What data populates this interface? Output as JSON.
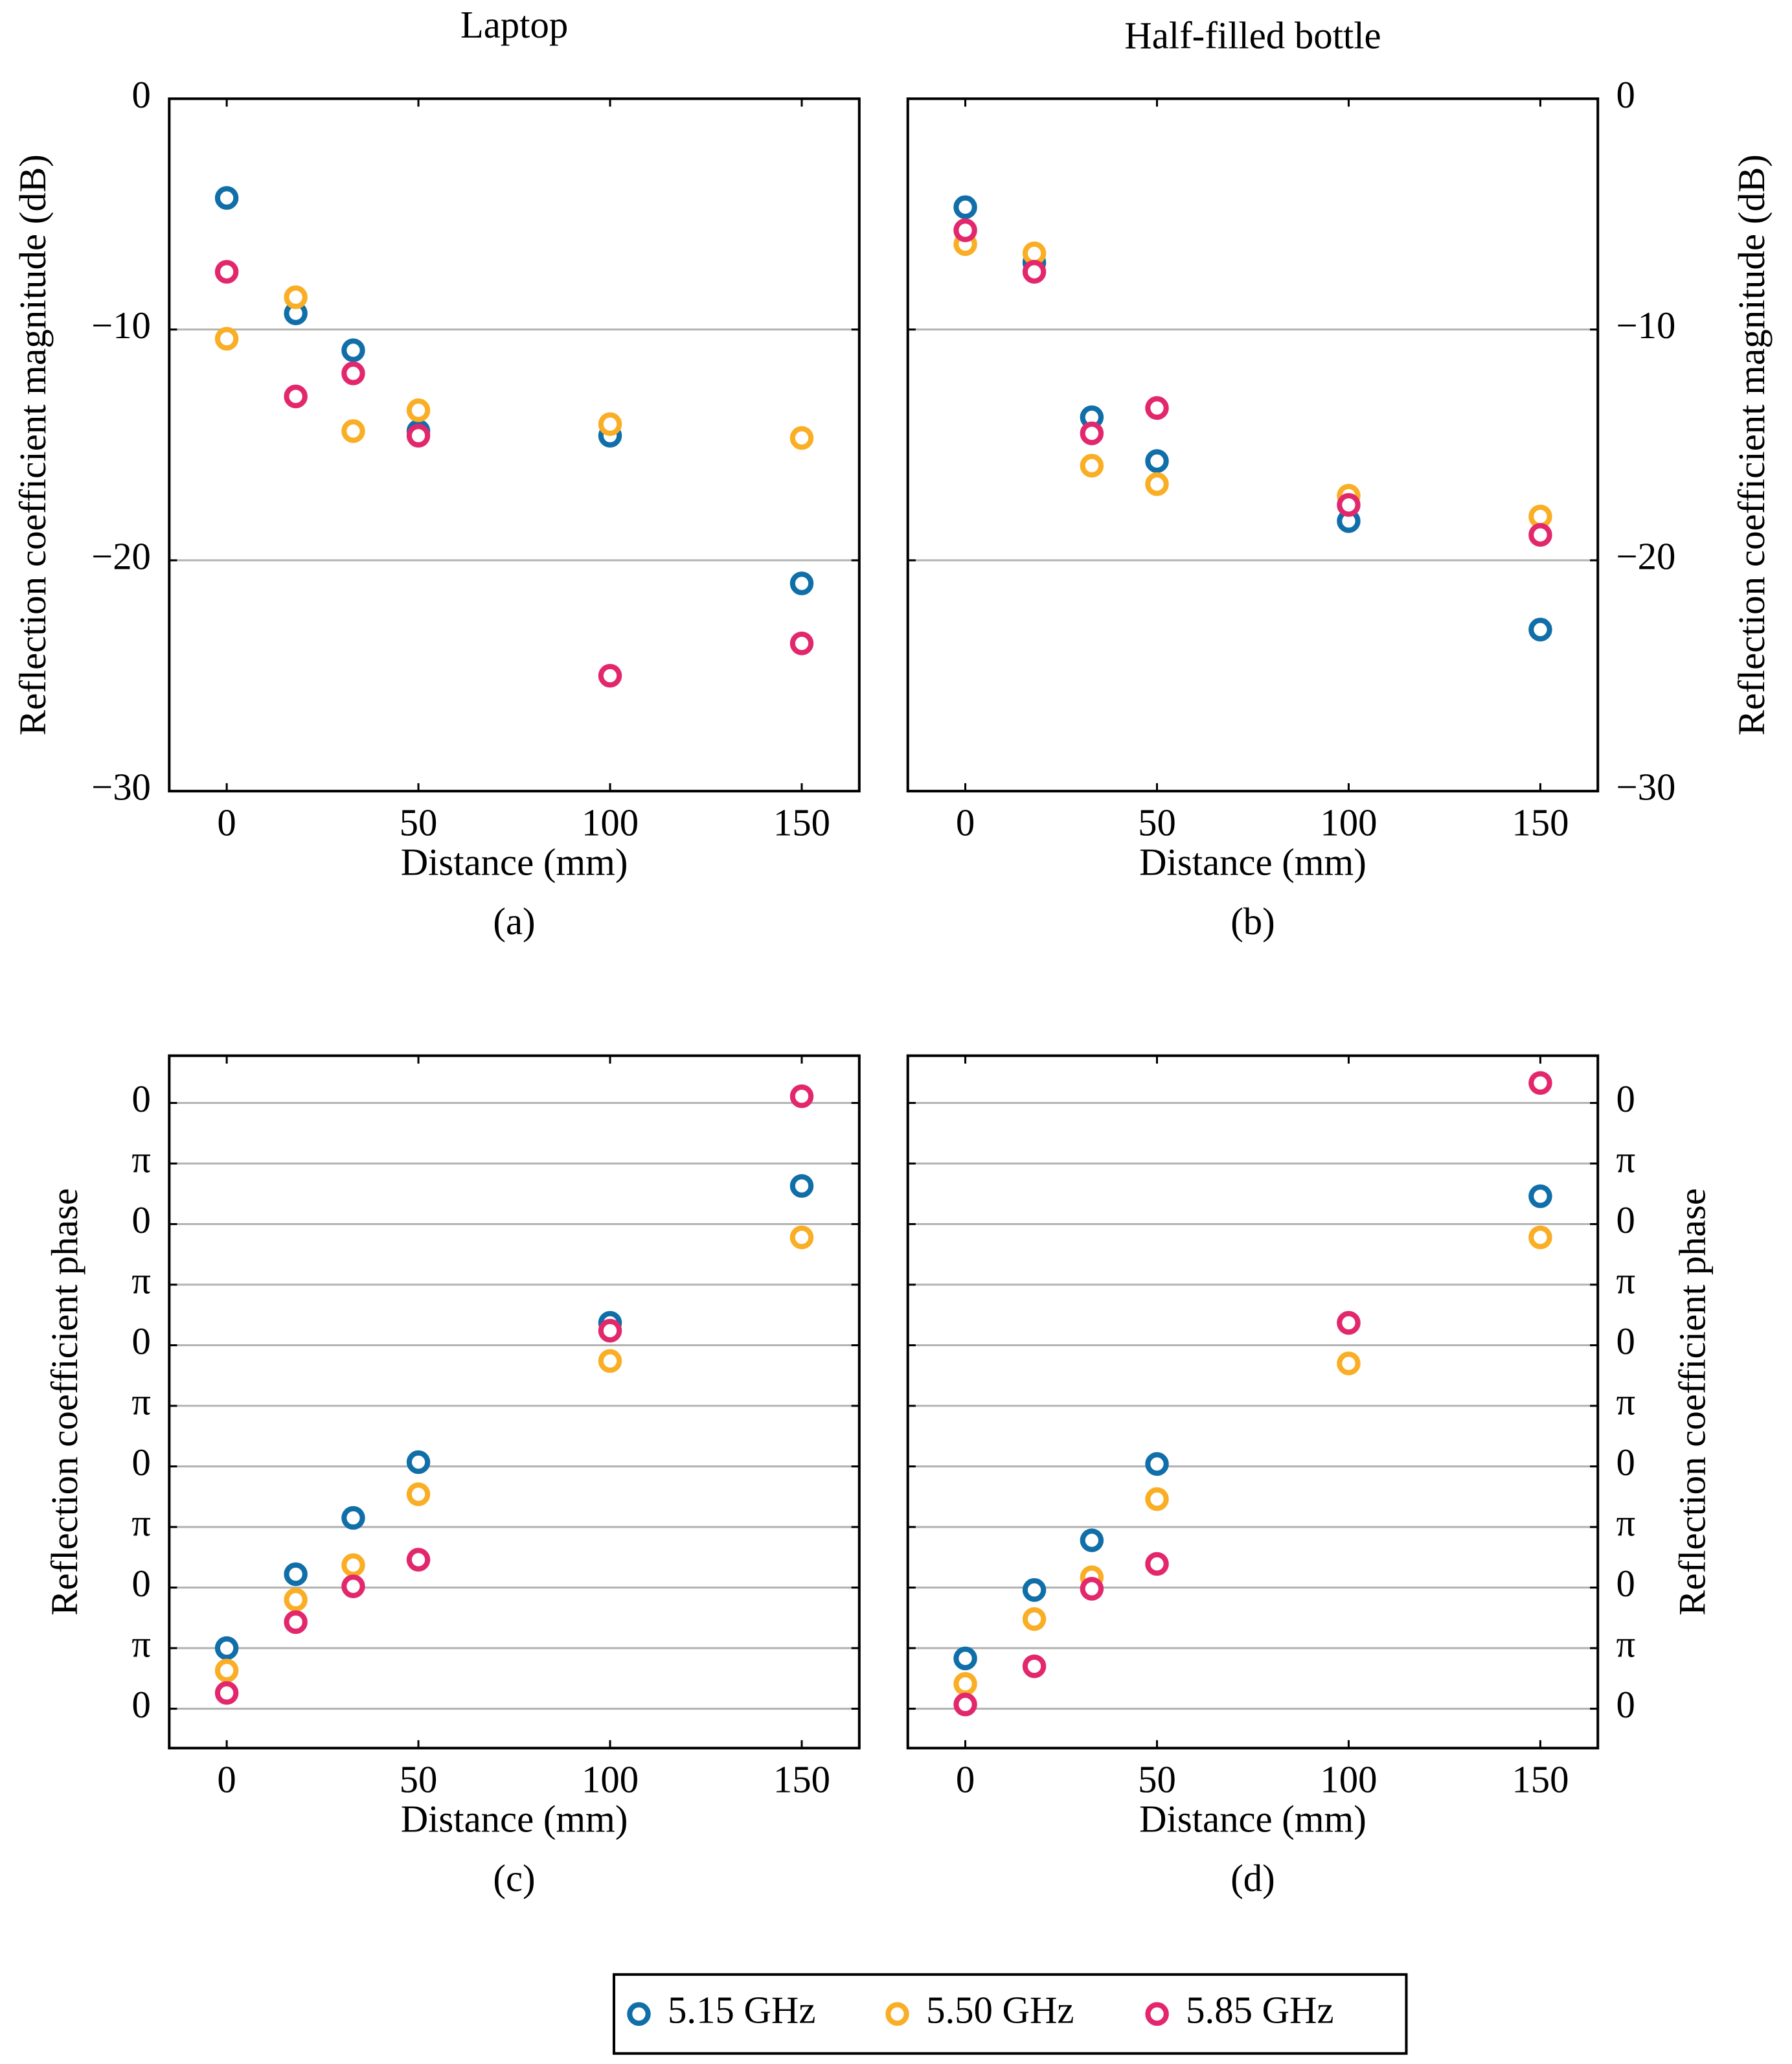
{
  "chart_data": [
    {
      "type": "scatter",
      "title": "Laptop",
      "caption": "(a)",
      "xlabel": "Distance (mm)",
      "ylabel": "Reflection coefficient magnitude (dB)",
      "x": [
        0,
        18,
        33,
        50,
        100,
        150
      ],
      "xlim": [
        -15,
        165
      ],
      "xticks": [
        0,
        50,
        100,
        150
      ],
      "ylim": [
        -30,
        0
      ],
      "yticks": [
        {
          "value": -30,
          "label": "−30"
        },
        {
          "value": -20,
          "label": "−20"
        },
        {
          "value": -10,
          "label": "−10"
        },
        0
      ],
      "grid": true,
      "series": [
        {
          "name": "5.15 GHz",
          "color": "#106ea8",
          "values": [
            -4.3,
            -9.3,
            -10.9,
            -14.4,
            -14.6,
            -21.0
          ]
        },
        {
          "name": "5.50 GHz",
          "color": "#f9ae25",
          "values": [
            -10.4,
            -8.6,
            -14.4,
            -13.5,
            -14.1,
            -14.7
          ]
        },
        {
          "name": "5.85 GHz",
          "color": "#e3276d",
          "values": [
            -7.5,
            -12.9,
            -11.9,
            -14.6,
            -25.0,
            -23.6
          ]
        }
      ]
    },
    {
      "type": "scatter",
      "title": "Half-filled bottle",
      "caption": "(b)",
      "xlabel": "Distance (mm)",
      "ylabel": "Reflection coefficient magnitude (dB)",
      "x": [
        0,
        18,
        33,
        50,
        100,
        150
      ],
      "xlim": [
        -15,
        165
      ],
      "xticks": [
        0,
        50,
        100,
        150
      ],
      "ylim": [
        -30,
        0
      ],
      "yticks": [
        {
          "value": -30,
          "label": "−30"
        },
        {
          "value": -20,
          "label": "−20"
        },
        {
          "value": -10,
          "label": "−10"
        },
        0
      ],
      "grid": true,
      "series": [
        {
          "color": "#106ea8",
          "values": [
            -4.7,
            -7.1,
            -13.8,
            -15.7,
            -18.3,
            -23.0
          ]
        },
        {
          "color": "#f9ae25",
          "values": [
            -6.3,
            -6.7,
            -15.9,
            -16.7,
            -17.2,
            -18.1
          ]
        },
        {
          "color": "#e3276d",
          "values": [
            -5.7,
            -7.5,
            -14.5,
            -13.4,
            -17.6,
            -18.9
          ]
        }
      ]
    },
    {
      "type": "scatter",
      "caption": "(c)",
      "xlabel": "Distance (mm)",
      "ylabel": "Reflection coefficient phase",
      "x": [
        0,
        18,
        33,
        50,
        100,
        150
      ],
      "xlim": [
        -15,
        165
      ],
      "xticks": [
        0,
        50,
        100,
        150
      ],
      "ylim": [
        -0.65,
        10.78
      ],
      "yticks": [
        0,
        {
          "value": 1,
          "label": "π"
        },
        {
          "value": 2,
          "label": "0"
        },
        {
          "value": 3,
          "label": "π"
        },
        {
          "value": 4,
          "label": "0"
        },
        {
          "value": 5,
          "label": "π"
        },
        {
          "value": 6,
          "label": "0"
        },
        {
          "value": 7,
          "label": "π"
        },
        {
          "value": 8,
          "label": "0"
        },
        {
          "value": 9,
          "label": "π"
        },
        {
          "value": 10,
          "label": "0"
        }
      ],
      "grid": true,
      "series": [
        {
          "color": "#106ea8",
          "values": [
            1.0,
            2.22,
            3.15,
            4.07,
            6.37,
            8.63
          ]
        },
        {
          "color": "#f9ae25",
          "values": [
            0.63,
            1.8,
            2.37,
            3.54,
            5.74,
            7.78
          ]
        },
        {
          "color": "#e3276d",
          "values": [
            0.26,
            1.43,
            2.02,
            2.46,
            6.24,
            10.11
          ]
        }
      ]
    },
    {
      "type": "scatter",
      "caption": "(d)",
      "xlabel": "Distance (mm)",
      "ylabel": "Reflection coefficient phase",
      "x": [
        0,
        18,
        33,
        50,
        100,
        150
      ],
      "xlim": [
        -15,
        165
      ],
      "xticks": [
        0,
        50,
        100,
        150
      ],
      "ylim": [
        -0.65,
        10.78
      ],
      "yticks": [
        0,
        {
          "value": 1,
          "label": "π"
        },
        {
          "value": 2,
          "label": "0"
        },
        {
          "value": 3,
          "label": "π"
        },
        {
          "value": 4,
          "label": "0"
        },
        {
          "value": 5,
          "label": "π"
        },
        {
          "value": 6,
          "label": "0"
        },
        {
          "value": 7,
          "label": "π"
        },
        {
          "value": 8,
          "label": "0"
        },
        {
          "value": 9,
          "label": "π"
        },
        {
          "value": 10,
          "label": "0"
        }
      ],
      "grid": true,
      "series": [
        {
          "color": "#106ea8",
          "values": [
            0.83,
            1.96,
            2.78,
            4.04,
            6.37,
            8.46
          ]
        },
        {
          "color": "#f9ae25",
          "values": [
            0.41,
            1.48,
            2.17,
            3.46,
            5.7,
            7.78
          ]
        },
        {
          "color": "#e3276d",
          "values": [
            0.07,
            0.7,
            1.98,
            2.39,
            6.37,
            10.33
          ]
        }
      ]
    }
  ]
}
